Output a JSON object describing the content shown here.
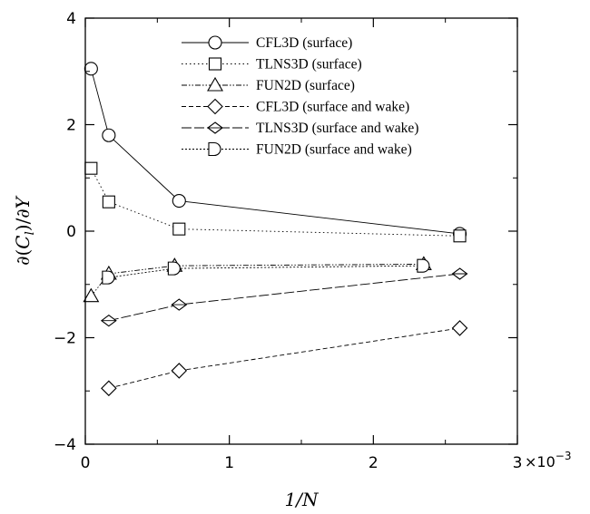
{
  "chart_data": {
    "type": "line",
    "xlabel": "1/N",
    "ylabel": "∂(C_l)/∂Y",
    "ylabel_parts": {
      "pre": "∂(",
      "base": "C",
      "sub": "l",
      "post": ")/∂",
      "var": "Y"
    },
    "x_scale_note": "×10",
    "x_scale_exponent": "−3",
    "xlim": [
      0,
      3
    ],
    "ylim": [
      -4,
      4
    ],
    "x_ticks": [
      0,
      1,
      2,
      3
    ],
    "x_tick_labels": [
      "0",
      "1",
      "2",
      "3"
    ],
    "y_ticks": [
      -4,
      -2,
      0,
      2,
      4
    ],
    "y_tick_labels": [
      "−4",
      "−2",
      "0",
      "2",
      "4"
    ],
    "grid": false,
    "legend_position": "top-center",
    "series": [
      {
        "name": "CFL3D (surface)",
        "marker": "circle",
        "dash": "solid",
        "x": [
          0.04,
          0.163,
          0.651,
          2.6
        ],
        "y": [
          3.05,
          1.8,
          0.57,
          -0.05
        ]
      },
      {
        "name": "TLNS3D (surface)",
        "marker": "square",
        "dash": "dotted",
        "x": [
          0.04,
          0.163,
          0.651,
          2.6
        ],
        "y": [
          1.18,
          0.55,
          0.04,
          -0.09
        ]
      },
      {
        "name": "FUN2D (surface)",
        "marker": "triangle",
        "dash": "dashdotdot",
        "x": [
          0.04,
          0.163,
          0.62,
          2.35
        ],
        "y": [
          -1.22,
          -0.8,
          -0.65,
          -0.62
        ]
      },
      {
        "name": "CFL3D (surface and wake)",
        "marker": "diamond",
        "dash": "dashed",
        "x": [
          0.163,
          0.651,
          2.6
        ],
        "y": [
          -2.95,
          -2.62,
          -1.82
        ]
      },
      {
        "name": "TLNS3D (surface and wake)",
        "marker": "flat-diamond",
        "dash": "longdash",
        "x": [
          0.163,
          0.651,
          2.6
        ],
        "y": [
          -1.68,
          -1.38,
          -0.8
        ]
      },
      {
        "name": "FUN2D (surface and wake)",
        "marker": "half-circle",
        "dash": "shortdot",
        "x": [
          0.163,
          0.62,
          2.35
        ],
        "y": [
          -0.87,
          -0.7,
          -0.65
        ]
      }
    ]
  }
}
